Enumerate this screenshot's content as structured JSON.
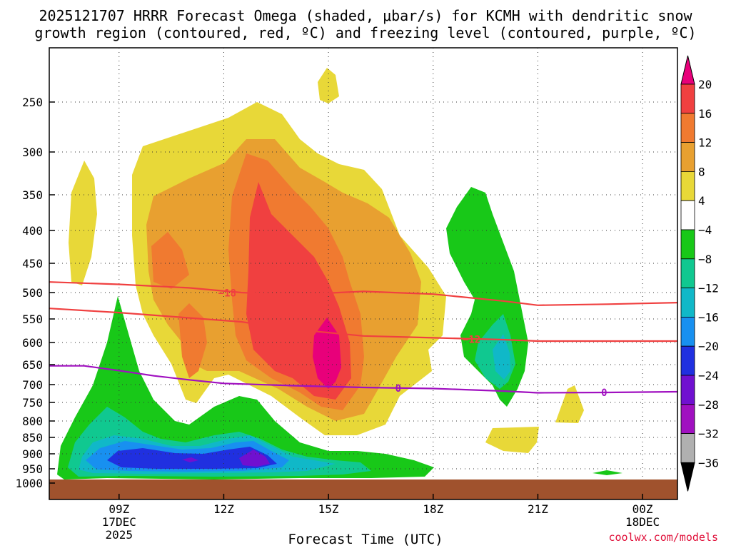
{
  "title_line1": "2025121707 HRRR Forecast Omega (shaded, μbar/s) for KCMH with dendritic snow",
  "title_line2": "growth region (contoured, red, ºC) and freezing level (contoured, purple, ºC)",
  "credit": "coolwx.com/models",
  "chart_data": {
    "type": "contour-cross-section",
    "xlabel": "Forecast Time (UTC)",
    "ylabel": "",
    "x_range_hours": [
      7,
      25
    ],
    "y_range_hpa": [
      1000,
      200
    ],
    "x_ticks": [
      {
        "hour": 9,
        "lines": [
          "09Z",
          "17DEC",
          "2025"
        ]
      },
      {
        "hour": 12,
        "lines": [
          "12Z"
        ]
      },
      {
        "hour": 15,
        "lines": [
          "15Z"
        ]
      },
      {
        "hour": 18,
        "lines": [
          "18Z"
        ]
      },
      {
        "hour": 21,
        "lines": [
          "21Z"
        ]
      },
      {
        "hour": 24,
        "lines": [
          "00Z",
          "18DEC"
        ]
      }
    ],
    "y_ticks": [
      250,
      300,
      350,
      400,
      450,
      500,
      550,
      600,
      650,
      700,
      750,
      800,
      850,
      900,
      950,
      1000
    ],
    "colorbar": {
      "labels": [
        "20",
        "16",
        "12",
        "8",
        "4",
        "−4",
        "−8",
        "−12",
        "−16",
        "−20",
        "−24",
        "−28",
        "−32",
        "−36"
      ],
      "bins": [
        {
          "range": ">20",
          "color": "#e8007a"
        },
        {
          "range": "16 to 20",
          "color": "#f04040"
        },
        {
          "range": "12 to 16",
          "color": "#f07a30"
        },
        {
          "range": "8 to 12",
          "color": "#e8a030"
        },
        {
          "range": "4 to 8",
          "color": "#e8d838"
        },
        {
          "range": "-4 to 4",
          "color": "#ffffff"
        },
        {
          "range": "-8 to -4",
          "color": "#18c818"
        },
        {
          "range": "-12 to -8",
          "color": "#10c890"
        },
        {
          "range": "-16 to -12",
          "color": "#10b8c8"
        },
        {
          "range": "-20 to -16",
          "color": "#1890f0"
        },
        {
          "range": "-24 to -20",
          "color": "#2030e0"
        },
        {
          "range": "-28 to -24",
          "color": "#7010d0"
        },
        {
          "range": "-32 to -28",
          "color": "#a010c0"
        },
        {
          "range": "-36 to -32",
          "color": "#b0b0b0"
        },
        {
          "range": "<-36",
          "color": "#000000"
        }
      ]
    },
    "contours": [
      {
        "name": "dendritic -18C",
        "label": "−18",
        "color": "#f04040",
        "points": [
          [
            7,
            482
          ],
          [
            9,
            486
          ],
          [
            11,
            492
          ],
          [
            12.5,
            500
          ],
          [
            14,
            504
          ],
          [
            16,
            498
          ],
          [
            18,
            503
          ],
          [
            20,
            516
          ],
          [
            21,
            524
          ],
          [
            23,
            522
          ],
          [
            25,
            519
          ]
        ]
      },
      {
        "name": "dendritic -12C",
        "label": "−12",
        "color": "#f04040",
        "points": [
          [
            7,
            530
          ],
          [
            9,
            538
          ],
          [
            11,
            548
          ],
          [
            12.5,
            556
          ],
          [
            14,
            572
          ],
          [
            16,
            586
          ],
          [
            18,
            590
          ],
          [
            20,
            594
          ],
          [
            21,
            597
          ],
          [
            23,
            597
          ],
          [
            25,
            597
          ]
        ]
      },
      {
        "name": "freezing level 0C",
        "label": "0",
        "color": "#a010c0",
        "points": [
          [
            7,
            653
          ],
          [
            8,
            653
          ],
          [
            9,
            665
          ],
          [
            10,
            678
          ],
          [
            11,
            688
          ],
          [
            12,
            697
          ],
          [
            14,
            703
          ],
          [
            16,
            708
          ],
          [
            18,
            711
          ],
          [
            20,
            718
          ],
          [
            21,
            723
          ],
          [
            23,
            722
          ],
          [
            25,
            720
          ]
        ]
      }
    ],
    "contour_labels_at": [
      {
        "label": "−18",
        "hour": 12.1,
        "hpa": 501
      },
      {
        "label": "−12",
        "hour": 19.1,
        "hpa": 593
      },
      {
        "label": "0",
        "hour": 17.0,
        "hpa": 710
      },
      {
        "label": "0",
        "hour": 22.9,
        "hpa": 722
      }
    ],
    "features": [
      {
        "name": "main ascent max (magenta)",
        "omega_max": ">20",
        "hour": 15.0,
        "hpa": 620
      },
      {
        "name": "upper sink region",
        "omega_min": "-24 to -32",
        "hour": 11.5,
        "hpa": 905
      },
      {
        "name": "secondary sink",
        "omega_min": "-12 to -16",
        "hour": 20.0,
        "hpa": 640
      }
    ],
    "ground_color": "#a0522d"
  }
}
